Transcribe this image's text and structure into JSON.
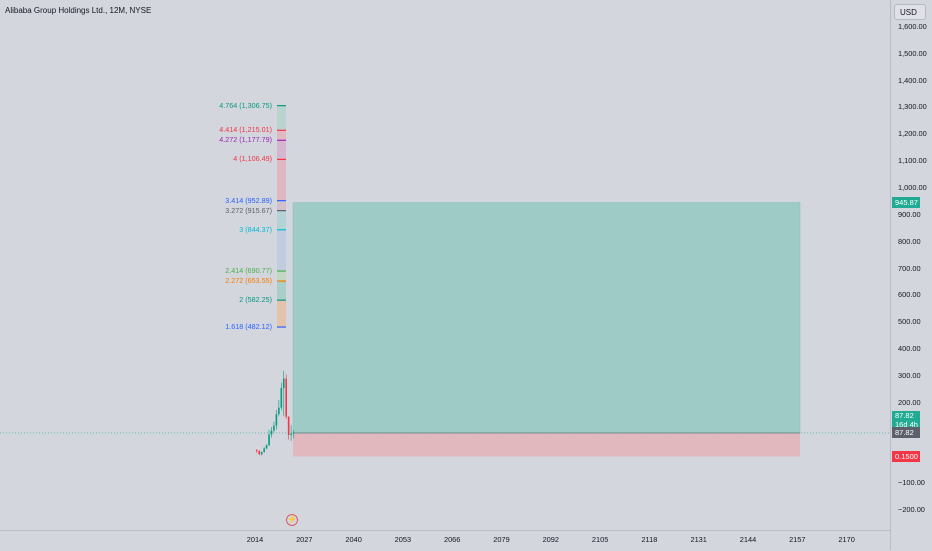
{
  "header": {
    "title": "Alibaba Group Holdings Ltd., 12M, NYSE"
  },
  "currency": "USD",
  "price_axis": {
    "ticks": [
      {
        "label": "1,600.00",
        "value": 1600
      },
      {
        "label": "1,500.00",
        "value": 1500
      },
      {
        "label": "1,400.00",
        "value": 1400
      },
      {
        "label": "1,300.00",
        "value": 1300
      },
      {
        "label": "1,200.00",
        "value": 1200
      },
      {
        "label": "1,100.00",
        "value": 1100
      },
      {
        "label": "1,000.00",
        "value": 1000
      },
      {
        "label": "900.00",
        "value": 900
      },
      {
        "label": "800.00",
        "value": 800
      },
      {
        "label": "700.00",
        "value": 700
      },
      {
        "label": "600.00",
        "value": 600
      },
      {
        "label": "500.00",
        "value": 500
      },
      {
        "label": "400.00",
        "value": 400
      },
      {
        "label": "300.00",
        "value": 300
      },
      {
        "label": "200.00",
        "value": 200
      },
      {
        "label": "−100.00",
        "value": -100
      },
      {
        "label": "−200.00",
        "value": -200
      }
    ]
  },
  "time_axis": {
    "ticks": [
      "2014",
      "2027",
      "2040",
      "2053",
      "2066",
      "2079",
      "2092",
      "2105",
      "2118",
      "2131",
      "2144",
      "2157",
      "2170"
    ]
  },
  "price_tags": {
    "target": {
      "label": "945.87",
      "value": 945.87,
      "color": "#22ab94"
    },
    "current": {
      "label": "87.82",
      "sub": "16d 4h",
      "value": 87.82,
      "color": "#22ab94"
    },
    "entry": {
      "label": "87.82",
      "value": 87.82,
      "color": "#5d606b"
    },
    "stop": {
      "label": "0.1500",
      "value": 0.15,
      "color": "#f23645"
    }
  },
  "fib_levels": [
    {
      "label": "4.764 (1,306.75)",
      "value": 1306.75,
      "color": "#089981"
    },
    {
      "label": "4.414 (1,215.01)",
      "value": 1215.01,
      "color": "#f23645"
    },
    {
      "label": "4.272 (1,177.79)",
      "value": 1177.79,
      "color": "#9c27b0"
    },
    {
      "label": "4 (1,106.49)",
      "value": 1106.49,
      "color": "#f23645"
    },
    {
      "label": "3.414 (952.89)",
      "value": 952.89,
      "color": "#2962ff"
    },
    {
      "label": "3.272 (915.67)",
      "value": 915.67,
      "color": "#5d606b"
    },
    {
      "label": "3 (844.37)",
      "value": 844.37,
      "color": "#00bcd4"
    },
    {
      "label": "2.414 (690.77)",
      "value": 690.77,
      "color": "#4caf50"
    },
    {
      "label": "2.272 (653.55)",
      "value": 653.55,
      "color": "#f57c00"
    },
    {
      "label": "2 (582.25)",
      "value": 582.25,
      "color": "#089981"
    },
    {
      "label": "1.618 (482.12)",
      "value": 482.12,
      "color": "#2962ff"
    }
  ],
  "position_tool": {
    "entry": 87.82,
    "target": 945.87,
    "stop": 0.15,
    "profit_color": "#9fcbc6",
    "loss_color": "#e1b8bd"
  },
  "candles": [
    {
      "o": 24,
      "h": 28,
      "l": 14,
      "c": 20
    },
    {
      "o": 20,
      "h": 24,
      "l": 5,
      "c": 8
    },
    {
      "o": 8,
      "h": 18,
      "l": 4,
      "c": 17
    },
    {
      "o": 17,
      "h": 35,
      "l": 14,
      "c": 30
    },
    {
      "o": 30,
      "h": 45,
      "l": 27,
      "c": 42
    },
    {
      "o": 42,
      "h": 100,
      "l": 39,
      "c": 82
    },
    {
      "o": 82,
      "h": 110,
      "l": 70,
      "c": 96
    },
    {
      "o": 96,
      "h": 130,
      "l": 90,
      "c": 115
    },
    {
      "o": 115,
      "h": 173,
      "l": 100,
      "c": 158
    },
    {
      "o": 158,
      "h": 211,
      "l": 150,
      "c": 182
    },
    {
      "o": 182,
      "h": 275,
      "l": 172,
      "c": 255
    },
    {
      "o": 255,
      "h": 319,
      "l": 150,
      "c": 290
    },
    {
      "o": 290,
      "h": 305,
      "l": 140,
      "c": 148
    },
    {
      "o": 148,
      "h": 150,
      "l": 63,
      "c": 80
    },
    {
      "o": 80,
      "h": 118,
      "l": 58,
      "c": 85
    },
    {
      "o": 85,
      "h": 98,
      "l": 68,
      "c": 87.82
    }
  ],
  "event_icon": "flash-icon",
  "colors": {
    "up": "#089981",
    "down": "#f23645"
  }
}
